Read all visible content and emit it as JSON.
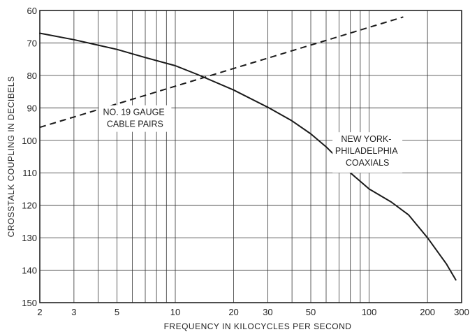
{
  "chart_data": {
    "type": "line",
    "xlabel": "FREQUENCY IN KILOCYCLES PER SECOND",
    "ylabel": "CROSSTALK COUPLING IN DECIBELS",
    "xscale": "log",
    "xlim": [
      2,
      300
    ],
    "ylim": [
      60,
      150
    ],
    "y_inverted": true,
    "grid": true,
    "x_ticks": [
      {
        "value": 2,
        "label": "2"
      },
      {
        "value": 3,
        "label": "3"
      },
      {
        "value": 5,
        "label": "5"
      },
      {
        "value": 10,
        "label": "10"
      },
      {
        "value": 20,
        "label": "20"
      },
      {
        "value": 30,
        "label": "30"
      },
      {
        "value": 50,
        "label": "50"
      },
      {
        "value": 100,
        "label": "100"
      },
      {
        "value": 200,
        "label": "200"
      },
      {
        "value": 300,
        "label": "300"
      }
    ],
    "y_ticks": [
      60,
      70,
      80,
      90,
      100,
      110,
      120,
      130,
      140,
      150
    ],
    "series": [
      {
        "id": "coaxials",
        "line_style": "solid",
        "x": [
          2,
          3,
          5,
          7,
          10,
          13,
          20,
          30,
          40,
          50,
          60,
          70,
          80,
          100,
          130,
          160,
          200,
          250,
          280
        ],
        "y": [
          67,
          69,
          72,
          74.5,
          77,
          79.7,
          84.5,
          89.8,
          94,
          98,
          102,
          106,
          110,
          115,
          119,
          123,
          130,
          138,
          143
        ]
      },
      {
        "id": "cable_pairs",
        "line_style": "dashed",
        "x": [
          2,
          150
        ],
        "y": [
          96,
          62
        ]
      }
    ],
    "annotations": [
      {
        "target": "cable_pairs",
        "lines": [
          "NO. 19 GAUGE",
          "CABLE PAIRS"
        ]
      },
      {
        "target": "coaxials",
        "lines": [
          "NEW YORK-",
          "PHILADELPHIA",
          "COAXIALS"
        ]
      }
    ]
  }
}
